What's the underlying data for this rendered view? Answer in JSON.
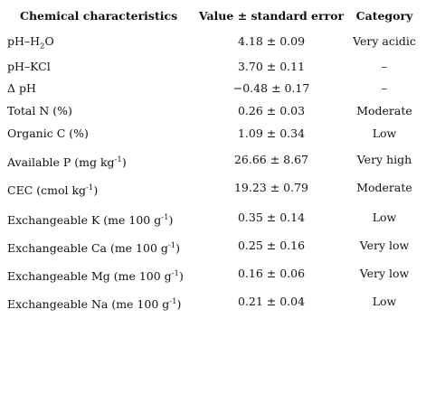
{
  "table": {
    "headers": [
      "Chemical characteristics",
      "Value ± standard error",
      "Category"
    ],
    "rows": [
      {
        "characteristic": [
          "pH–H",
          {
            "sub": "2"
          },
          "O"
        ],
        "value": "4.18 ± 0.09",
        "category": "Very acidic"
      },
      {
        "characteristic": [
          "pH–KCl"
        ],
        "value": "3.70 ± 0.11",
        "category": "–"
      },
      {
        "characteristic": [
          "Δ pH"
        ],
        "value": "−0.48 ± 0.17",
        "category": "–"
      },
      {
        "characteristic": [
          "Total N (%)"
        ],
        "value": "0.26 ± 0.03",
        "category": "Moderate"
      },
      {
        "characteristic": [
          "Organic C (%)"
        ],
        "value": "1.09 ± 0.34",
        "category": "Low"
      },
      {
        "characteristic": [
          "Available P (mg kg",
          {
            "sup": "-1"
          },
          ")"
        ],
        "value": "26.66 ± 8.67",
        "category": "Very high"
      },
      {
        "characteristic": [
          "CEC (cmol kg",
          {
            "sup": "-1"
          },
          ")"
        ],
        "value": "19.23 ± 0.79",
        "category": "Moderate"
      },
      {
        "characteristic": [
          "Exchangeable K (me 100 g",
          {
            "sup": "-1"
          },
          ")"
        ],
        "value": "0.35 ± 0.14",
        "category": "Low"
      },
      {
        "characteristic": [
          "Exchangeable Ca (me 100 g",
          {
            "sup": "-1"
          },
          ")"
        ],
        "value": "0.25 ± 0.16",
        "category": "Very low"
      },
      {
        "characteristic": [
          "Exchangeable Mg (me 100 g",
          {
            "sup": "-1"
          },
          ")"
        ],
        "value": "0.16 ± 0.06",
        "category": "Very low"
      },
      {
        "characteristic": [
          "Exchangeable Na (me 100 g",
          {
            "sup": "-1"
          },
          ")"
        ],
        "value": "0.21 ± 0.04",
        "category": "Low"
      }
    ]
  }
}
